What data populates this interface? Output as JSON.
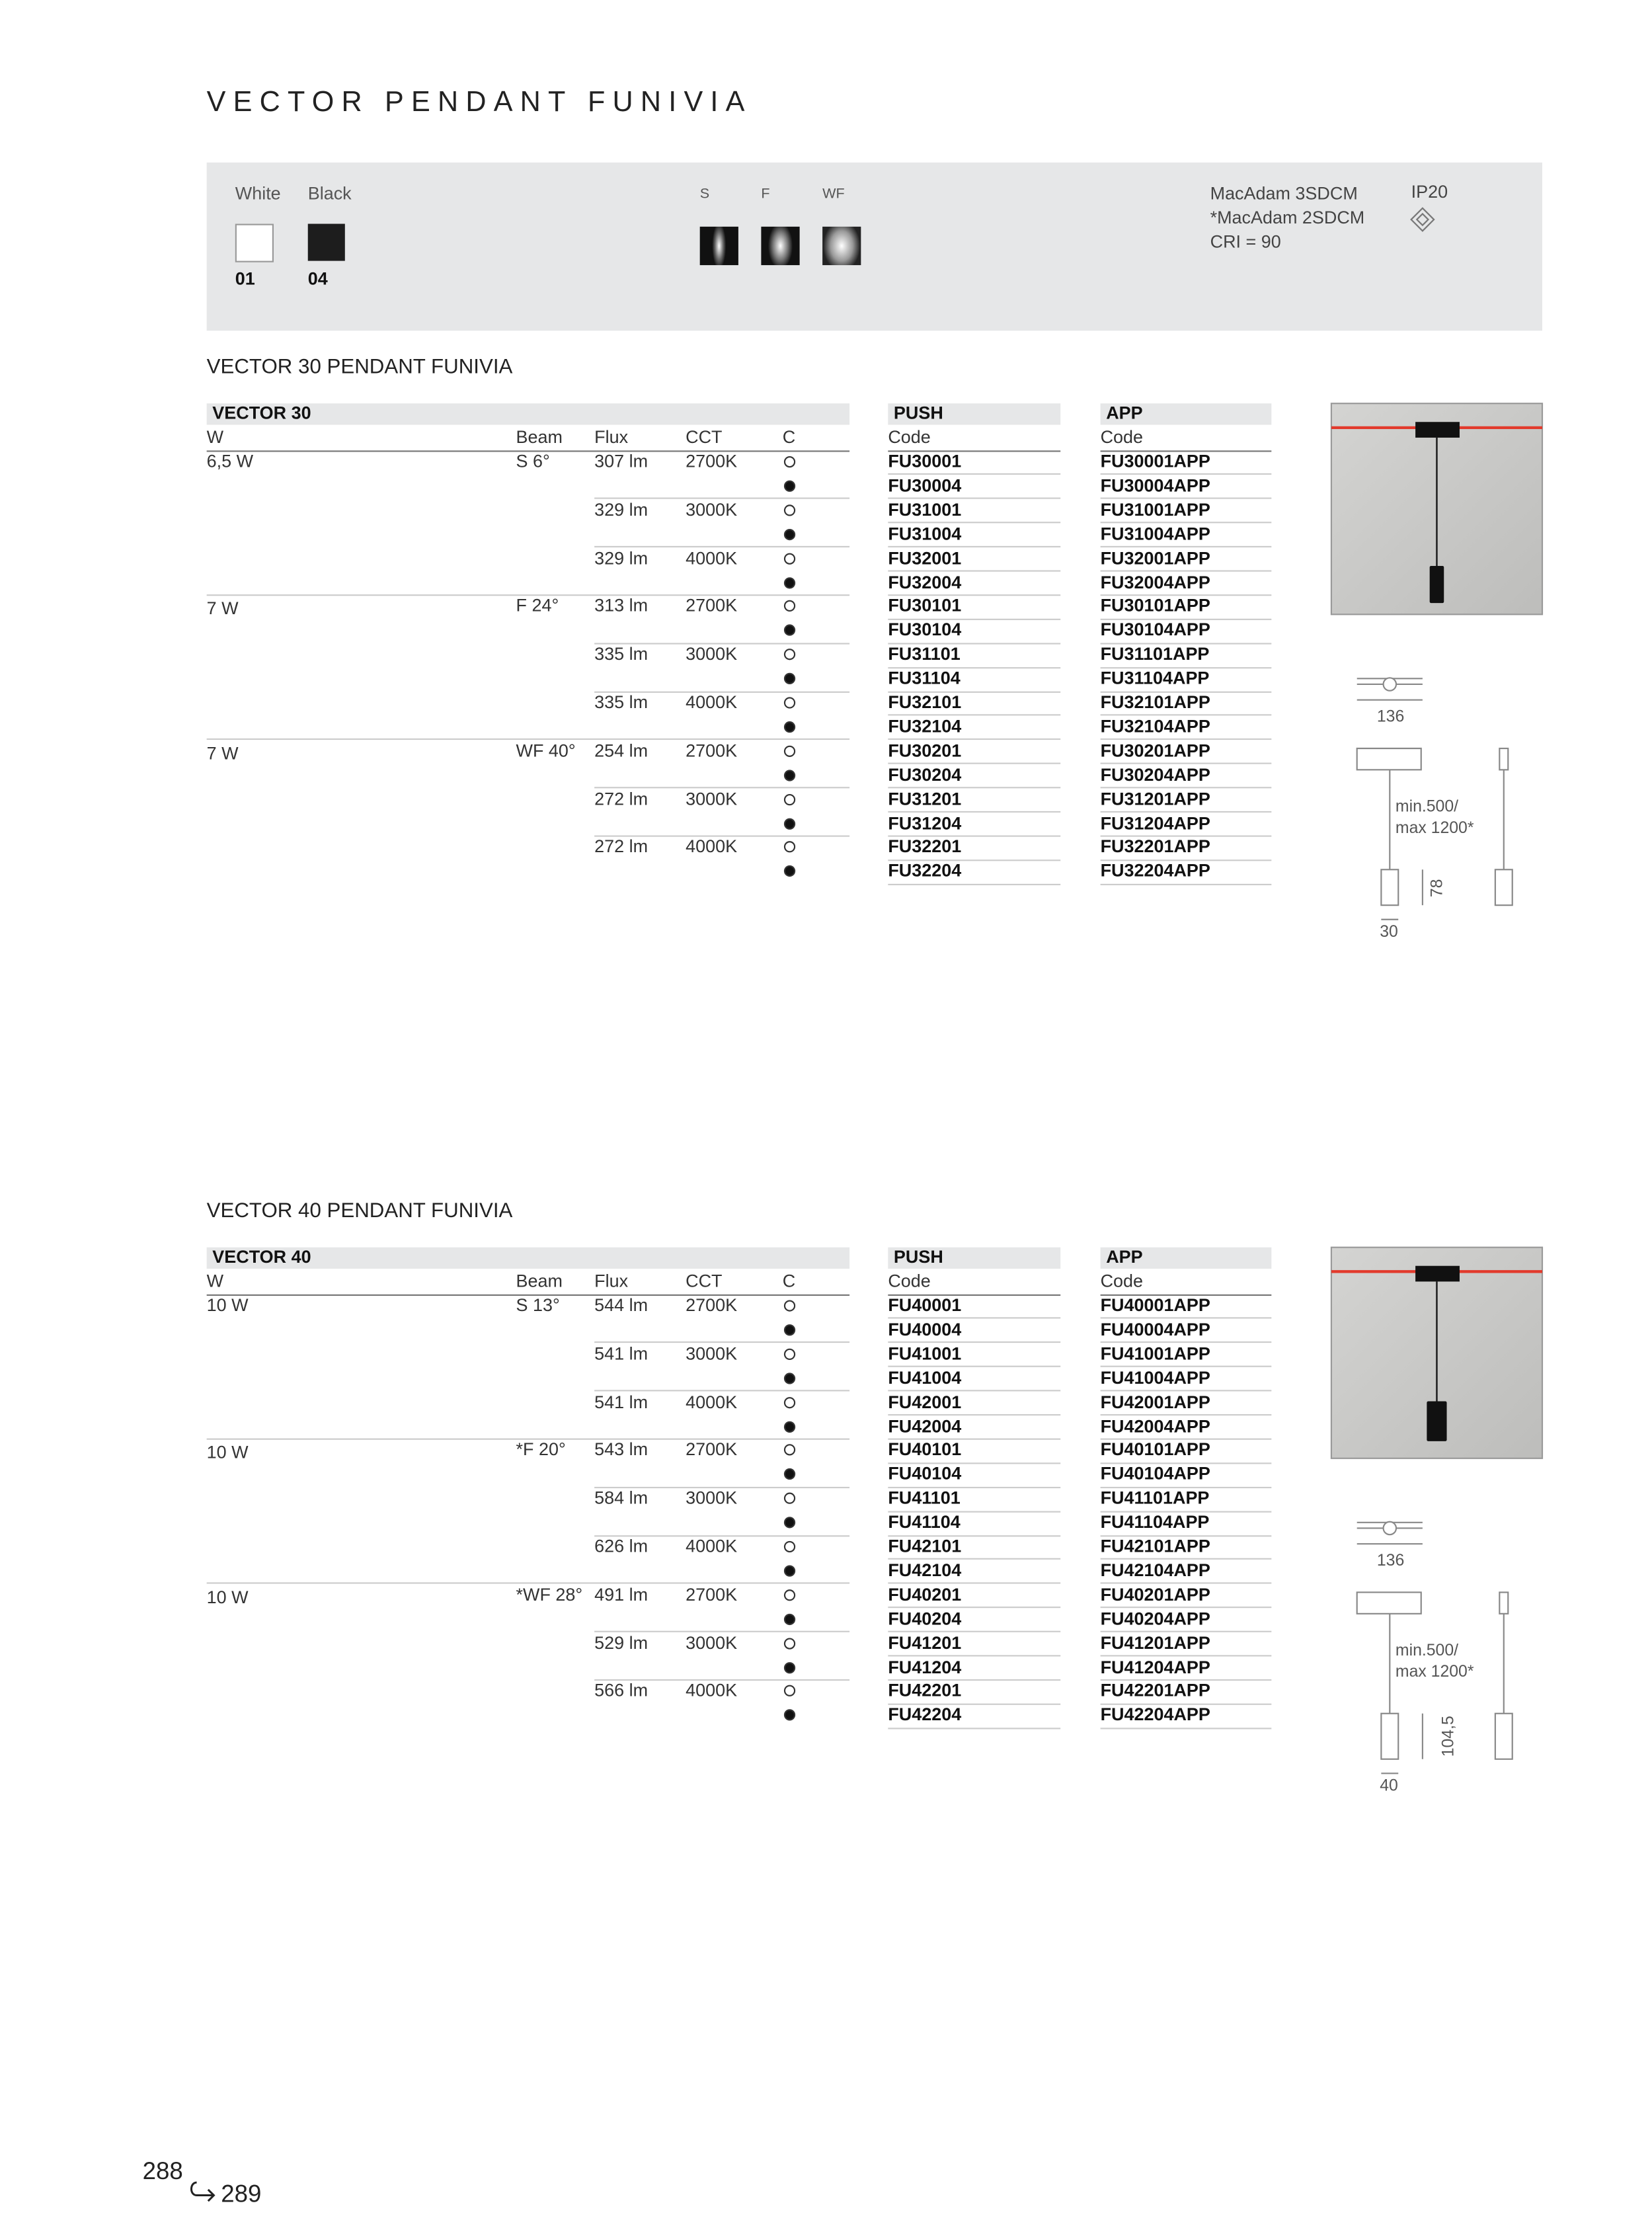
{
  "header": {
    "title": "VECTOR PENDANT FUNIVIA"
  },
  "options": {
    "finishes": [
      {
        "label": "White",
        "code": "01"
      },
      {
        "label": "Black",
        "code": "04"
      }
    ],
    "beams": [
      "S",
      "F",
      "WF"
    ],
    "specs": [
      "MacAdam 3SDCM",
      "*MacAdam 2SDCM",
      "CRI = 90"
    ],
    "ip": "IP20"
  },
  "sections": [
    {
      "title": "VECTOR 30 PENDANT FUNIVIA",
      "table_title": "VECTOR 30",
      "headers": [
        "W",
        "Beam",
        "Flux",
        "CCT",
        "C"
      ],
      "push_header": "PUSH",
      "push_code_header": "Code",
      "app_header": "APP",
      "app_code_header": "Code",
      "groups": [
        {
          "w": "6,5 W",
          "beam": "S 6°",
          "variants": [
            {
              "flux": "307 lm",
              "cct": "2700K",
              "codes": [
                {
                  "push": "FU30001",
                  "app": "FU30001APP"
                },
                {
                  "push": "FU30004",
                  "app": "FU30004APP"
                }
              ]
            },
            {
              "flux": "329 lm",
              "cct": "3000K",
              "codes": [
                {
                  "push": "FU31001",
                  "app": "FU31001APP"
                },
                {
                  "push": "FU31004",
                  "app": "FU31004APP"
                }
              ]
            },
            {
              "flux": "329 lm",
              "cct": "4000K",
              "codes": [
                {
                  "push": "FU32001",
                  "app": "FU32001APP"
                },
                {
                  "push": "FU32004",
                  "app": "FU32004APP"
                }
              ]
            }
          ]
        },
        {
          "w": "7 W",
          "beam": "F 24°",
          "variants": [
            {
              "flux": "313 lm",
              "cct": "2700K",
              "codes": [
                {
                  "push": "FU30101",
                  "app": "FU30101APP"
                },
                {
                  "push": "FU30104",
                  "app": "FU30104APP"
                }
              ]
            },
            {
              "flux": "335 lm",
              "cct": "3000K",
              "codes": [
                {
                  "push": "FU31101",
                  "app": "FU31101APP"
                },
                {
                  "push": "FU31104",
                  "app": "FU31104APP"
                }
              ]
            },
            {
              "flux": "335 lm",
              "cct": "4000K",
              "codes": [
                {
                  "push": "FU32101",
                  "app": "FU32101APP"
                },
                {
                  "push": "FU32104",
                  "app": "FU32104APP"
                }
              ]
            }
          ]
        },
        {
          "w": "7 W",
          "beam": "WF 40°",
          "variants": [
            {
              "flux": "254 lm",
              "cct": "2700K",
              "codes": [
                {
                  "push": "FU30201",
                  "app": "FU30201APP"
                },
                {
                  "push": "FU30204",
                  "app": "FU30204APP"
                }
              ]
            },
            {
              "flux": "272 lm",
              "cct": "3000K",
              "codes": [
                {
                  "push": "FU31201",
                  "app": "FU31201APP"
                },
                {
                  "push": "FU31204",
                  "app": "FU31204APP"
                }
              ]
            },
            {
              "flux": "272 lm",
              "cct": "4000K",
              "codes": [
                {
                  "push": "FU32201",
                  "app": "FU32201APP"
                },
                {
                  "push": "FU32204",
                  "app": "FU32204APP"
                }
              ]
            }
          ]
        }
      ],
      "dimensions": {
        "width": "136",
        "cable": [
          "min.500/",
          "max 1200*"
        ],
        "height": "78",
        "diameter": "30"
      }
    },
    {
      "title": "VECTOR 40 PENDANT FUNIVIA",
      "table_title": "VECTOR 40",
      "headers": [
        "W",
        "Beam",
        "Flux",
        "CCT",
        "C"
      ],
      "push_header": "PUSH",
      "push_code_header": "Code",
      "app_header": "APP",
      "app_code_header": "Code",
      "groups": [
        {
          "w": "10 W",
          "beam": "S 13°",
          "variants": [
            {
              "flux": "544 lm",
              "cct": "2700K",
              "codes": [
                {
                  "push": "FU40001",
                  "app": "FU40001APP"
                },
                {
                  "push": "FU40004",
                  "app": "FU40004APP"
                }
              ]
            },
            {
              "flux": "541 lm",
              "cct": "3000K",
              "codes": [
                {
                  "push": "FU41001",
                  "app": "FU41001APP"
                },
                {
                  "push": "FU41004",
                  "app": "FU41004APP"
                }
              ]
            },
            {
              "flux": "541 lm",
              "cct": "4000K",
              "codes": [
                {
                  "push": "FU42001",
                  "app": "FU42001APP"
                },
                {
                  "push": "FU42004",
                  "app": "FU42004APP"
                }
              ]
            }
          ]
        },
        {
          "w": "10 W",
          "beam": "*F 20°",
          "variants": [
            {
              "flux": "543 lm",
              "cct": "2700K",
              "codes": [
                {
                  "push": "FU40101",
                  "app": "FU40101APP"
                },
                {
                  "push": "FU40104",
                  "app": "FU40104APP"
                }
              ]
            },
            {
              "flux": "584 lm",
              "cct": "3000K",
              "codes": [
                {
                  "push": "FU41101",
                  "app": "FU41101APP"
                },
                {
                  "push": "FU41104",
                  "app": "FU41104APP"
                }
              ]
            },
            {
              "flux": "626 lm",
              "cct": "4000K",
              "codes": [
                {
                  "push": "FU42101",
                  "app": "FU42101APP"
                },
                {
                  "push": "FU42104",
                  "app": "FU42104APP"
                }
              ]
            }
          ]
        },
        {
          "w": "10 W",
          "beam": "*WF 28°",
          "variants": [
            {
              "flux": "491 lm",
              "cct": "2700K",
              "codes": [
                {
                  "push": "FU40201",
                  "app": "FU40201APP"
                },
                {
                  "push": "FU40204",
                  "app": "FU40204APP"
                }
              ]
            },
            {
              "flux": "529 lm",
              "cct": "3000K",
              "codes": [
                {
                  "push": "FU41201",
                  "app": "FU41201APP"
                },
                {
                  "push": "FU41204",
                  "app": "FU41204APP"
                }
              ]
            },
            {
              "flux": "566 lm",
              "cct": "4000K",
              "codes": [
                {
                  "push": "FU42201",
                  "app": "FU42201APP"
                },
                {
                  "push": "FU42204",
                  "app": "FU42204APP"
                }
              ]
            }
          ]
        }
      ],
      "dimensions": {
        "width": "136",
        "cable": [
          "min.500/",
          "max 1200*"
        ],
        "height": "104,5",
        "diameter": "40"
      }
    }
  ],
  "footer": {
    "page_left": "288",
    "page_right": "289"
  }
}
